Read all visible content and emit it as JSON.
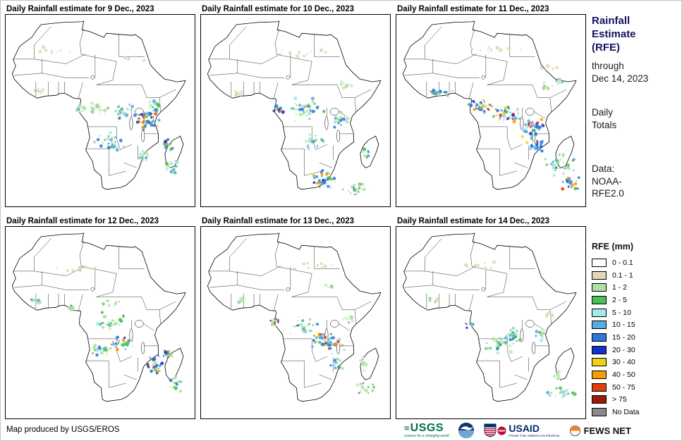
{
  "panels": [
    {
      "title": "Daily Rainfall estimate for 9 Dec., 2023",
      "clusters": [
        [
          200,
          150,
          20,
          16,
          55,
          2
        ],
        [
          214,
          130,
          12,
          9,
          22,
          1
        ],
        [
          170,
          140,
          18,
          13,
          30,
          1
        ],
        [
          135,
          135,
          16,
          11,
          22,
          0
        ],
        [
          148,
          180,
          24,
          14,
          28,
          1
        ],
        [
          232,
          185,
          8,
          10,
          16,
          2
        ],
        [
          240,
          215,
          16,
          13,
          18,
          1
        ],
        [
          108,
          132,
          8,
          7,
          12,
          1
        ],
        [
          196,
          200,
          12,
          9,
          14,
          1
        ],
        [
          45,
          108,
          10,
          5,
          8,
          0
        ],
        [
          70,
          50,
          28,
          6,
          10,
          3
        ],
        [
          180,
          62,
          22,
          5,
          8,
          3
        ]
      ]
    },
    {
      "title": "Daily Rainfall estimate for 10 Dec., 2023",
      "clusters": [
        [
          150,
          135,
          28,
          17,
          45,
          1
        ],
        [
          110,
          133,
          8,
          7,
          14,
          2
        ],
        [
          200,
          148,
          15,
          12,
          28,
          1
        ],
        [
          176,
          234,
          18,
          14,
          42,
          2
        ],
        [
          225,
          248,
          24,
          10,
          22,
          1
        ],
        [
          160,
          180,
          20,
          12,
          22,
          1
        ],
        [
          234,
          195,
          8,
          11,
          12,
          1
        ],
        [
          206,
          100,
          12,
          7,
          10,
          0
        ],
        [
          50,
          110,
          12,
          5,
          8,
          0
        ],
        [
          150,
          55,
          42,
          6,
          14,
          3
        ]
      ]
    },
    {
      "title": "Daily Rainfall estimate for 11 Dec., 2023",
      "clusters": [
        [
          60,
          110,
          24,
          7,
          22,
          1
        ],
        [
          120,
          130,
          22,
          11,
          40,
          2
        ],
        [
          160,
          140,
          24,
          14,
          42,
          2
        ],
        [
          195,
          160,
          17,
          14,
          38,
          2
        ],
        [
          200,
          185,
          14,
          11,
          28,
          2
        ],
        [
          233,
          213,
          24,
          18,
          40,
          1
        ],
        [
          249,
          238,
          14,
          11,
          22,
          2
        ],
        [
          210,
          100,
          14,
          7,
          12,
          0
        ],
        [
          234,
          95,
          9,
          5,
          8,
          1
        ],
        [
          140,
          50,
          46,
          6,
          16,
          3
        ],
        [
          220,
          75,
          18,
          5,
          8,
          3
        ]
      ]
    },
    {
      "title": "Daily Rainfall estimate for 12 Dec., 2023",
      "clusters": [
        [
          150,
          135,
          24,
          14,
          32,
          1
        ],
        [
          165,
          165,
          17,
          11,
          28,
          2
        ],
        [
          213,
          196,
          12,
          17,
          38,
          2
        ],
        [
          231,
          180,
          8,
          7,
          14,
          2
        ],
        [
          135,
          175,
          19,
          11,
          22,
          1
        ],
        [
          45,
          105,
          11,
          5,
          8,
          1
        ],
        [
          150,
          110,
          17,
          7,
          12,
          0
        ],
        [
          244,
          224,
          12,
          14,
          16,
          1
        ],
        [
          95,
          115,
          9,
          5,
          8,
          1
        ],
        [
          100,
          60,
          32,
          6,
          10,
          3
        ]
      ]
    },
    {
      "title": "Daily Rainfall estimate for 13 Dec., 2023",
      "clusters": [
        [
          105,
          135,
          8,
          7,
          14,
          2
        ],
        [
          145,
          140,
          24,
          14,
          32,
          1
        ],
        [
          180,
          165,
          26,
          17,
          50,
          2
        ],
        [
          195,
          195,
          12,
          9,
          18,
          1
        ],
        [
          233,
          195,
          8,
          11,
          10,
          0
        ],
        [
          240,
          230,
          19,
          11,
          20,
          1
        ],
        [
          210,
          130,
          10,
          7,
          10,
          0
        ],
        [
          55,
          105,
          14,
          5,
          8,
          0
        ],
        [
          185,
          85,
          8,
          4,
          6,
          0
        ],
        [
          160,
          55,
          38,
          6,
          10,
          3
        ]
      ]
    },
    {
      "title": "Daily Rainfall estimate for 14 Dec., 2023",
      "clusters": [
        [
          150,
          165,
          28,
          17,
          40,
          1
        ],
        [
          166,
          151,
          12,
          9,
          14,
          1
        ],
        [
          205,
          155,
          10,
          8,
          14,
          1
        ],
        [
          104,
          138,
          6,
          6,
          8,
          2
        ],
        [
          235,
          235,
          24,
          11,
          22,
          1
        ],
        [
          229,
          210,
          7,
          8,
          8,
          0
        ],
        [
          218,
          125,
          8,
          5,
          8,
          0
        ],
        [
          50,
          105,
          10,
          5,
          6,
          0
        ],
        [
          120,
          55,
          32,
          6,
          9,
          3
        ]
      ]
    }
  ],
  "palettes": [
    [
      "#cdebbe",
      "#ade0a2",
      "#8fd48f",
      "#e1d8bb"
    ],
    [
      "#ade0a2",
      "#4dbe54",
      "#a9e7ef",
      "#58ace4",
      "#2c77d9",
      "#cdebbe"
    ],
    [
      "#2c77d9",
      "#58ace4",
      "#1330c9",
      "#4dbe54",
      "#a9e7ef",
      "#efd118",
      "#f59d05",
      "#e33e0a"
    ],
    [
      "#e1d8bb",
      "#ddd0ab"
    ]
  ],
  "sidebar": {
    "title": "Rainfall\nEstimate\n(RFE)",
    "through": "through\nDec 14, 2023",
    "totals": "Daily\nTotals",
    "data_source": "Data:\nNOAA-\nRFE2.0"
  },
  "legend": {
    "title": "RFE (mm)",
    "items": [
      {
        "label": "0 - 0.1",
        "color": "#FFFFFF"
      },
      {
        "label": "0.1 - 1",
        "color": "#E1D8BB"
      },
      {
        "label": "1 - 2",
        "color": "#ADE0A2"
      },
      {
        "label": "2 - 5",
        "color": "#4DBE54"
      },
      {
        "label": "5 - 10",
        "color": "#A9E7EF"
      },
      {
        "label": "10 - 15",
        "color": "#58ACE4"
      },
      {
        "label": "15 - 20",
        "color": "#2C77D9"
      },
      {
        "label": "20 - 30",
        "color": "#1330C9"
      },
      {
        "label": "30 - 40",
        "color": "#EFD118"
      },
      {
        "label": "40 - 50",
        "color": "#F59D05"
      },
      {
        "label": "50 - 75",
        "color": "#E33E0A"
      },
      {
        "label": "> 75",
        "color": "#9C1A06"
      },
      {
        "label": "No Data",
        "color": "#8A8A8A"
      }
    ]
  },
  "footer": {
    "credit": "Map produced by USGS/EROS",
    "usgs_name": "USGS",
    "usgs_tagline": "science for a changing world",
    "usaid_name": "USAID",
    "usaid_tagline": "FROM THE AMERICAN PEOPLE",
    "fews_name": "FEWS NET"
  }
}
